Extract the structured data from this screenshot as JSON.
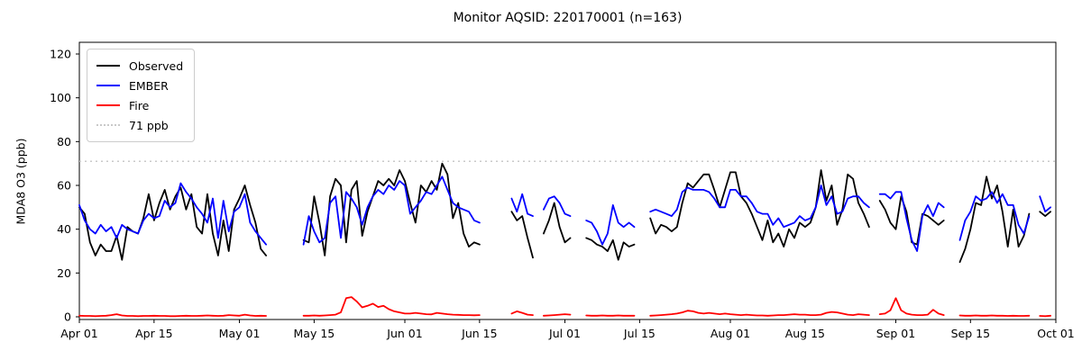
{
  "chart_data": {
    "type": "line",
    "title": "Monitor AQSID: 220170001 (n=163)",
    "xlabel": "",
    "ylabel": "MDA8 O3 (ppb)",
    "y_ticks": [
      0,
      20,
      40,
      60,
      80,
      100,
      120
    ],
    "ylim": [
      -1.2,
      125.4
    ],
    "x_total_days": 183,
    "x_tick_labels": [
      "Apr 01",
      "Apr 15",
      "May 01",
      "May 15",
      "Jun 01",
      "Jun 15",
      "Jul 01",
      "Jul 15",
      "Aug 01",
      "Aug 15",
      "Sep 01",
      "Sep 15",
      "Oct 01"
    ],
    "x_tick_days": [
      0,
      14,
      30,
      44,
      61,
      75,
      91,
      105,
      122,
      136,
      153,
      167,
      183
    ],
    "grid": false,
    "legend_position": "upper left",
    "threshold": {
      "label": "71 ppb",
      "value": 71,
      "color": "#c9c9c9",
      "style": "dotted"
    },
    "series": [
      {
        "name": "Observed",
        "color": "#000000",
        "segments": [
          {
            "start_date": "Apr 01",
            "start_day": 0,
            "values": [
              50,
              47,
              34,
              28,
              33,
              30,
              30,
              37,
              26,
              41,
              39,
              38,
              45,
              56,
              44,
              52,
              58,
              49,
              55,
              59,
              49,
              56,
              41,
              38,
              56,
              38,
              28,
              44,
              30,
              49,
              54,
              60,
              51,
              43,
              31,
              28
            ]
          },
          {
            "start_date": "May 13",
            "start_day": 42,
            "values": [
              35,
              34,
              55,
              43,
              28,
              55,
              63,
              60,
              34,
              58,
              62,
              37,
              48,
              55,
              62,
              60,
              63,
              60,
              67,
              62,
              52,
              43,
              60,
              57,
              62,
              58,
              70,
              65,
              45,
              52,
              38,
              32,
              34,
              33
            ]
          },
          {
            "start_date": "Jun 21",
            "start_day": 81,
            "values": [
              48,
              44,
              46,
              36,
              27
            ]
          },
          {
            "start_date": "Jun 27",
            "start_day": 87,
            "values": [
              38,
              44,
              52,
              41,
              34,
              36
            ]
          },
          {
            "start_date": "Jul 05",
            "start_day": 95,
            "values": [
              36,
              35,
              33,
              32,
              30,
              35,
              26,
              34,
              32,
              33
            ]
          },
          {
            "start_date": "Jul 17",
            "start_day": 107,
            "values": [
              45,
              38,
              42,
              41,
              39,
              41,
              52,
              61,
              59,
              62,
              65,
              65,
              58,
              50,
              58,
              66,
              66,
              55,
              52,
              47,
              41,
              35,
              44,
              34,
              38,
              32,
              40,
              36,
              43,
              41,
              43,
              50,
              67,
              53,
              60,
              42,
              49,
              65,
              63,
              52,
              47,
              41
            ]
          },
          {
            "start_date": "Aug 29",
            "start_day": 150,
            "values": [
              53,
              49,
              43,
              40,
              55,
              48,
              34,
              33,
              47,
              46,
              44,
              42,
              44
            ]
          },
          {
            "start_date": "Sep 13",
            "start_day": 165,
            "values": [
              25,
              31,
              40,
              52,
              51,
              64,
              54,
              60,
              48,
              32,
              49,
              32,
              37,
              47
            ]
          },
          {
            "start_date": "Sep 28",
            "start_day": 180,
            "values": [
              48,
              46,
              48
            ]
          }
        ]
      },
      {
        "name": "EMBER",
        "color": "#0000ff",
        "segments": [
          {
            "start_date": "Apr 01",
            "start_day": 0,
            "values": [
              51,
              44,
              40,
              38,
              42,
              39,
              41,
              36,
              42,
              40,
              39,
              38,
              44,
              47,
              45,
              46,
              53,
              50,
              52,
              61,
              57,
              54,
              50,
              47,
              43,
              54,
              36,
              53,
              39,
              48,
              50,
              56,
              43,
              39,
              36,
              33
            ]
          },
          {
            "start_date": "May 13",
            "start_day": 42,
            "values": [
              33,
              46,
              39,
              34,
              36,
              52,
              55,
              36,
              57,
              54,
              50,
              42,
              50,
              55,
              58,
              56,
              60,
              58,
              62,
              60,
              47,
              50,
              53,
              57,
              56,
              60,
              64,
              58,
              52,
              50,
              49,
              48,
              44,
              43
            ]
          },
          {
            "start_date": "Jun 21",
            "start_day": 81,
            "values": [
              54,
              48,
              56,
              47,
              46
            ]
          },
          {
            "start_date": "Jun 27",
            "start_day": 87,
            "values": [
              49,
              54,
              55,
              52,
              47,
              46
            ]
          },
          {
            "start_date": "Jul 05",
            "start_day": 95,
            "values": [
              44,
              43,
              39,
              33,
              38,
              51,
              43,
              41,
              43,
              41
            ]
          },
          {
            "start_date": "Jul 17",
            "start_day": 107,
            "values": [
              48,
              49,
              48,
              47,
              46,
              49,
              57,
              59,
              58,
              58,
              58,
              57,
              54,
              50,
              50,
              58,
              58,
              55,
              55,
              52,
              48,
              47,
              47,
              42,
              45,
              41,
              42,
              43,
              46,
              44,
              45,
              50,
              60,
              51,
              55,
              47,
              48,
              54,
              55,
              55,
              52,
              50
            ]
          },
          {
            "start_date": "Aug 29",
            "start_day": 150,
            "values": [
              56,
              56,
              54,
              57,
              57,
              45,
              35,
              30,
              46,
              51,
              46,
              52,
              50
            ]
          },
          {
            "start_date": "Sep 13",
            "start_day": 165,
            "values": [
              35,
              44,
              48,
              55,
              53,
              54,
              57,
              52,
              56,
              51,
              51,
              42,
              38,
              46
            ]
          },
          {
            "start_date": "Sep 28",
            "start_day": 180,
            "values": [
              55,
              48,
              50
            ]
          }
        ]
      },
      {
        "name": "Fire",
        "color": "#ff0000",
        "segments": [
          {
            "start_date": "Apr 01",
            "start_day": 0,
            "values": [
              0.5,
              0.4,
              0.4,
              0.3,
              0.4,
              0.5,
              0.8,
              1.2,
              0.6,
              0.4,
              0.4,
              0.3,
              0.4,
              0.4,
              0.5,
              0.4,
              0.4,
              0.3,
              0.3,
              0.4,
              0.5,
              0.4,
              0.4,
              0.5,
              0.6,
              0.5,
              0.4,
              0.5,
              0.8,
              0.6,
              0.5,
              1.0,
              0.6,
              0.4,
              0.5,
              0.4
            ]
          },
          {
            "start_date": "May 13",
            "start_day": 42,
            "values": [
              0.5,
              0.5,
              0.6,
              0.5,
              0.6,
              0.8,
              1.0,
              2.0,
              8.5,
              9.0,
              7.0,
              4.3,
              5.0,
              6.0,
              4.5,
              5.0,
              3.5,
              2.5,
              2.0,
              1.5,
              1.5,
              1.8,
              1.5,
              1.2,
              1.1,
              1.8,
              1.5,
              1.2,
              1.0,
              0.9,
              0.8,
              0.8,
              0.7,
              0.8
            ]
          },
          {
            "start_date": "Jun 21",
            "start_day": 81,
            "values": [
              1.5,
              2.5,
              1.8,
              1.0,
              0.8
            ]
          },
          {
            "start_date": "Jun 27",
            "start_day": 87,
            "values": [
              0.5,
              0.6,
              0.8,
              1.0,
              1.2,
              1.0
            ]
          },
          {
            "start_date": "Jul 05",
            "start_day": 95,
            "values": [
              0.6,
              0.5,
              0.5,
              0.6,
              0.5,
              0.5,
              0.6,
              0.5,
              0.5,
              0.5
            ]
          },
          {
            "start_date": "Jul 17",
            "start_day": 107,
            "values": [
              0.5,
              0.6,
              0.8,
              1.0,
              1.2,
              1.5,
              2.0,
              2.8,
              2.5,
              1.8,
              1.5,
              1.8,
              1.5,
              1.2,
              1.5,
              1.2,
              1.0,
              0.8,
              1.0,
              0.8,
              0.6,
              0.6,
              0.5,
              0.6,
              0.8,
              0.8,
              1.0,
              1.2,
              1.0,
              1.0,
              0.8,
              0.8,
              1.0,
              1.8,
              2.2,
              2.0,
              1.5,
              1.0,
              0.8,
              1.2,
              1.0,
              0.8
            ]
          },
          {
            "start_date": "Aug 29",
            "start_day": 150,
            "values": [
              1.2,
              1.5,
              3.0,
              8.5,
              3.0,
              1.5,
              1.0,
              0.8,
              0.8,
              1.0,
              3.2,
              1.5,
              0.8
            ]
          },
          {
            "start_date": "Sep 13",
            "start_day": 165,
            "values": [
              0.6,
              0.5,
              0.5,
              0.6,
              0.5,
              0.5,
              0.6,
              0.5,
              0.5,
              0.4,
              0.5,
              0.4,
              0.4,
              0.5
            ]
          },
          {
            "start_date": "Sep 28",
            "start_day": 180,
            "values": [
              0.4,
              0.3,
              0.5
            ]
          }
        ]
      }
    ],
    "legend": [
      "Observed",
      "EMBER",
      "Fire",
      "71 ppb"
    ],
    "n_observed": 163
  }
}
